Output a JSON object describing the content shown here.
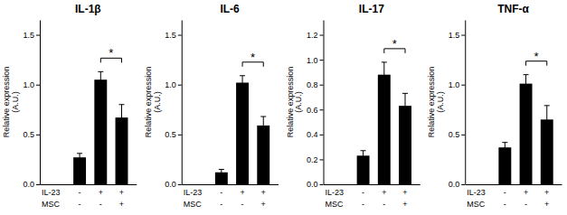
{
  "chart_data": [
    {
      "type": "bar",
      "title": "IL-1β",
      "ylabel": "Relative expression\n(A.U.)",
      "categories": [
        null,
        null,
        null
      ],
      "values": [
        0.27,
        1.05,
        0.67
      ],
      "errors": [
        0.04,
        0.08,
        0.13
      ],
      "color": "#000000",
      "ylim": [
        0,
        1.65
      ],
      "yticks": [
        {
          "value": 0,
          "label": "0.0"
        },
        0.5,
        {
          "value": 1,
          "label": "1.0"
        },
        1.5
      ],
      "tick_labels": "y",
      "annotations": {
        "significance": "*",
        "rows": [
          {
            "label": "IL-23",
            "signs": [
              "-",
              "+",
              "+"
            ]
          },
          {
            "label": "MSC",
            "signs": [
              "-",
              "-",
              "+"
            ]
          }
        ]
      }
    },
    {
      "type": "bar",
      "title": "IL-6",
      "ylabel": "Relative expression\n(A.U.)",
      "categories": [
        null,
        null,
        null
      ],
      "values": [
        0.12,
        1.02,
        0.59
      ],
      "errors": [
        0.03,
        0.07,
        0.09
      ],
      "color": "#000000",
      "ylim": [
        0,
        1.65
      ],
      "yticks": [
        {
          "value": 0,
          "label": "0.0"
        },
        0.5,
        {
          "value": 1,
          "label": "1.0"
        },
        1.5
      ],
      "tick_labels": "y",
      "annotations": {
        "significance": "*",
        "rows": [
          {
            "label": "IL-23",
            "signs": [
              "-",
              "+",
              "+"
            ]
          },
          {
            "label": "MSC",
            "signs": [
              "-",
              "-",
              "+"
            ]
          }
        ]
      }
    },
    {
      "type": "bar",
      "title": "IL-17",
      "ylabel": "Relative expression\n(A.U.)",
      "categories": [
        null,
        null,
        null
      ],
      "values": [
        0.23,
        0.88,
        0.63
      ],
      "errors": [
        0.04,
        0.1,
        0.1
      ],
      "color": "#000000",
      "ylim": [
        0,
        1.32
      ],
      "yticks": [
        {
          "value": 0,
          "label": "0.0"
        },
        0.2,
        0.4,
        0.6,
        0.8,
        {
          "value": 1.0,
          "label": "1.0"
        },
        1.2
      ],
      "tick_labels": "y",
      "annotations": {
        "significance": "*",
        "rows": [
          {
            "label": "IL-23",
            "signs": [
              "-",
              "+",
              "+"
            ]
          },
          {
            "label": "MSC",
            "signs": [
              "-",
              "-",
              "+"
            ]
          }
        ]
      }
    },
    {
      "type": "bar",
      "title": "TNF-α",
      "ylabel": "Relative expression\n(A.U.)",
      "categories": [
        null,
        null,
        null
      ],
      "values": [
        0.37,
        1.01,
        0.65
      ],
      "errors": [
        0.05,
        0.09,
        0.14
      ],
      "color": "#000000",
      "ylim": [
        0,
        1.65
      ],
      "yticks": [
        {
          "value": 0,
          "label": "0.0"
        },
        0.5,
        {
          "value": 1,
          "label": "1.0"
        },
        1.5
      ],
      "tick_labels": "y",
      "annotations": {
        "significance": "*",
        "rows": [
          {
            "label": "IL-23",
            "signs": [
              "-",
              "+",
              "+"
            ]
          },
          {
            "label": "MSC",
            "signs": [
              "-",
              "-",
              "+"
            ]
          }
        ]
      }
    }
  ]
}
